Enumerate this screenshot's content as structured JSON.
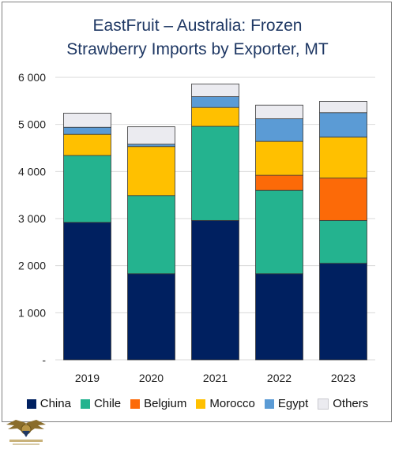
{
  "chart_data": {
    "type": "bar",
    "stacked": true,
    "title": "EastFruit – Australia: Frozen Strawberry Imports by Exporter, MT",
    "title_lines": [
      "EastFruit – Australia: Frozen",
      "Strawberry Imports by Exporter, MT"
    ],
    "categories": [
      "2019",
      "2020",
      "2021",
      "2022",
      "2023"
    ],
    "series": [
      {
        "name": "China",
        "color": "#002060",
        "values": [
          2920,
          1830,
          2960,
          1830,
          2050
        ]
      },
      {
        "name": "Chile",
        "color": "#24b38f",
        "values": [
          1420,
          1660,
          2000,
          1770,
          910
        ]
      },
      {
        "name": "Belgium",
        "color": "#fc6a08",
        "values": [
          0,
          0,
          0,
          320,
          900
        ]
      },
      {
        "name": "Morocco",
        "color": "#ffc000",
        "values": [
          450,
          1040,
          400,
          720,
          870
        ]
      },
      {
        "name": "Egypt",
        "color": "#5b9bd5",
        "values": [
          150,
          50,
          230,
          480,
          520
        ]
      },
      {
        "name": "Others",
        "color": "#ebebf0",
        "values": [
          300,
          370,
          270,
          290,
          240
        ]
      }
    ],
    "ylim": [
      0,
      6000
    ],
    "yticks": [
      0,
      1000,
      2000,
      3000,
      4000,
      5000,
      6000
    ],
    "ytick_labels": [
      "-",
      "1 000",
      "2 000",
      "3 000",
      "4 000",
      "5 000",
      "6 000"
    ],
    "grid": true,
    "legend_position": "bottom",
    "xlabel": "",
    "ylabel": ""
  },
  "footer": {
    "logo_icon": "eagle-logo-icon"
  }
}
